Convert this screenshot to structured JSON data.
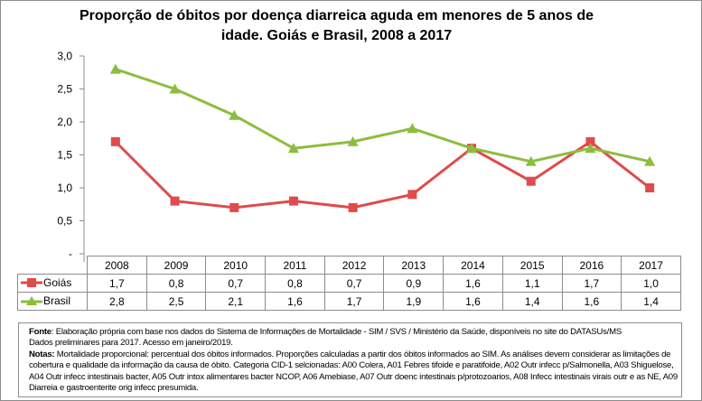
{
  "chart_data": {
    "type": "line",
    "title_line1": "Proporção de óbitos por doença diarreica aguda em menores de 5 anos de",
    "title_line2": "idade. Goiás e Brasil, 2008 a 2017",
    "categories": [
      "2008",
      "2009",
      "2010",
      "2011",
      "2012",
      "2013",
      "2014",
      "2015",
      "2016",
      "2017"
    ],
    "series": [
      {
        "name": "Goiás",
        "values": [
          1.7,
          0.8,
          0.7,
          0.8,
          0.7,
          0.9,
          1.6,
          1.1,
          1.7,
          1.0
        ],
        "labels": [
          "1,7",
          "0,8",
          "0,7",
          "0,8",
          "0,7",
          "0,9",
          "1,6",
          "1,1",
          "1,7",
          "1,0"
        ],
        "color": "#e04b4b",
        "marker": "square"
      },
      {
        "name": "Brasil",
        "values": [
          2.8,
          2.5,
          2.1,
          1.6,
          1.7,
          1.9,
          1.6,
          1.4,
          1.6,
          1.4
        ],
        "labels": [
          "2,8",
          "2,5",
          "2,1",
          "1,6",
          "1,7",
          "1,9",
          "1,6",
          "1,4",
          "1,6",
          "1,4"
        ],
        "color": "#8cbd3f",
        "marker": "triangle"
      }
    ],
    "ylim": [
      0,
      3.0
    ],
    "yticks": [
      0,
      0.5,
      1.0,
      1.5,
      2.0,
      2.5,
      3.0
    ],
    "ytick_labels": [
      "-",
      "0,5",
      "1,0",
      "1,5",
      "2,0",
      "2,5",
      "3,0"
    ],
    "grid": false,
    "legend": "data-table"
  },
  "notes": {
    "fonte_label": "Fonte",
    "fonte_text": ": Elaboração própria com base nos dados do Sistema de Informações de Mortalidade - SIM / SVS / Ministério da Saúde, disponíveis no site do DATASUs/MS",
    "line2": "Dados preliminares para 2017. Acesso em janeiro/2019.",
    "notas_label": "Notas:",
    "notas_text": " Mortalidade proporcional: percentual dos óbitos informados. Proporções calculadas a partir dos óbitos informados ao SIM. As análises devem considerar as limitações de cobertura e qualidade da informação da causa de óbito. Categoria CID-1 selcionadas: A00 Colera, A01 Febres tifoide e paratifoide, A02 Outr infecc p/Salmonella, A03 Shiguelose, A04 Outr infecc intestinais bacter, A05 Outr intox alimentares bacter NCOP, A06 Amebiase, A07 Outr doenc intestinais p/protozoarios, A08 Infecc intestinais virais outr e as NE, A09 Diarreia e gastroenterite orig infecc presumida."
  }
}
